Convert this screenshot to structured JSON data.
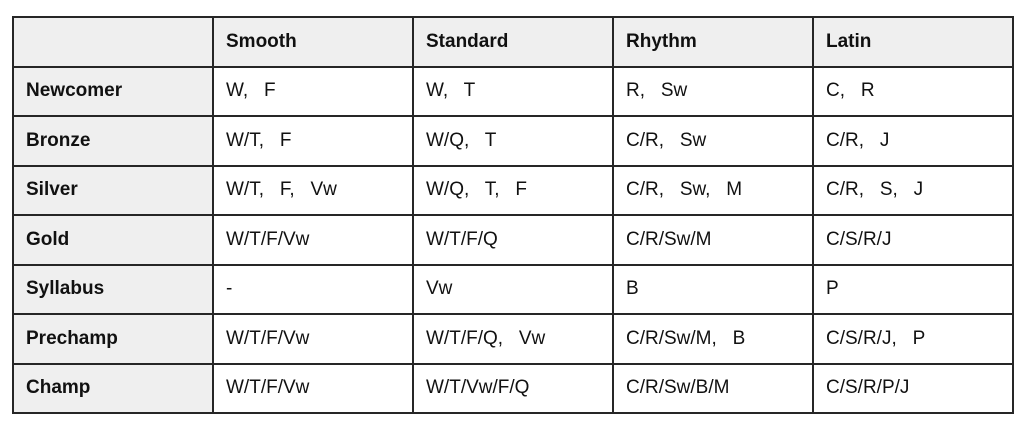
{
  "table": {
    "columns": [
      "",
      "Smooth",
      "Standard",
      "Rhythm",
      "Latin"
    ],
    "rows": [
      {
        "label": "Newcomer",
        "cells": [
          "W,   F",
          "W,   T",
          "R,   Sw",
          "C,   R"
        ]
      },
      {
        "label": "Bronze",
        "cells": [
          "W/T,   F",
          "W/Q,   T",
          "C/R,   Sw",
          "C/R,   J"
        ]
      },
      {
        "label": "Silver",
        "cells": [
          "W/T,   F,   Vw",
          "W/Q,   T,   F",
          "C/R,   Sw,   M",
          "C/R,   S,   J"
        ]
      },
      {
        "label": "Gold",
        "cells": [
          "W/T/F/Vw",
          "W/T/F/Q",
          "C/R/Sw/M",
          "C/S/R/J"
        ]
      },
      {
        "label": "Syllabus",
        "cells": [
          "-",
          "Vw",
          "B",
          "P"
        ]
      },
      {
        "label": "Prechamp",
        "cells": [
          "W/T/F/Vw",
          "W/T/F/Q,   Vw",
          "C/R/Sw/M,   B",
          "C/S/R/J,   P"
        ]
      },
      {
        "label": "Champ",
        "cells": [
          "W/T/F/Vw",
          "W/T/Vw/F/Q",
          "C/R/Sw/B/M",
          "C/S/R/P/J"
        ]
      }
    ]
  }
}
